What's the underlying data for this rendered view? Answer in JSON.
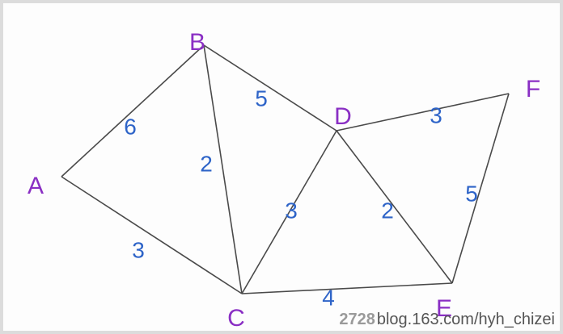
{
  "nodes": [
    {
      "id": "A",
      "label": "A"
    },
    {
      "id": "B",
      "label": "B"
    },
    {
      "id": "C",
      "label": "C"
    },
    {
      "id": "D",
      "label": "D"
    },
    {
      "id": "E",
      "label": "E"
    },
    {
      "id": "F",
      "label": "F"
    }
  ],
  "edges": [
    {
      "from": "A",
      "to": "B",
      "weight": "6"
    },
    {
      "from": "A",
      "to": "C",
      "weight": "3"
    },
    {
      "from": "B",
      "to": "C",
      "weight": "2"
    },
    {
      "from": "B",
      "to": "D",
      "weight": "5"
    },
    {
      "from": "C",
      "to": "D",
      "weight": "3"
    },
    {
      "from": "C",
      "to": "E",
      "weight": "4"
    },
    {
      "from": "D",
      "to": "E",
      "weight": "2"
    },
    {
      "from": "D",
      "to": "F",
      "weight": "3"
    },
    {
      "from": "E",
      "to": "F",
      "weight": "5"
    }
  ],
  "colors": {
    "node_label": "#8a2fc4",
    "weight_label": "#2e64c8",
    "edge": "#4a4a4a"
  },
  "watermark": {
    "number": "2728",
    "text": "blog.163.com/hyh_chizei"
  }
}
